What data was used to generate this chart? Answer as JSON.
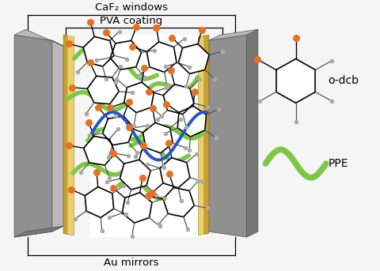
{
  "fig_width": 4.8,
  "fig_height": 3.43,
  "dpi": 100,
  "bg_color": "#f5f5f5",
  "gray_color": "#909090",
  "gray_dark": "#606060",
  "gray_light": "#b8b8b8",
  "gold_color": "#C8A030",
  "gold_light": "#E8D070",
  "cavity_color": "#ffffff",
  "blue_wave_color": "#2255CC",
  "green_ppe_color": "#7DC843",
  "label_caf2": "CaF₂ windows",
  "label_pva": "PVA coating",
  "label_au": "Au mirrors",
  "label_odcb": "o-dcb",
  "label_ppe": "PPE"
}
